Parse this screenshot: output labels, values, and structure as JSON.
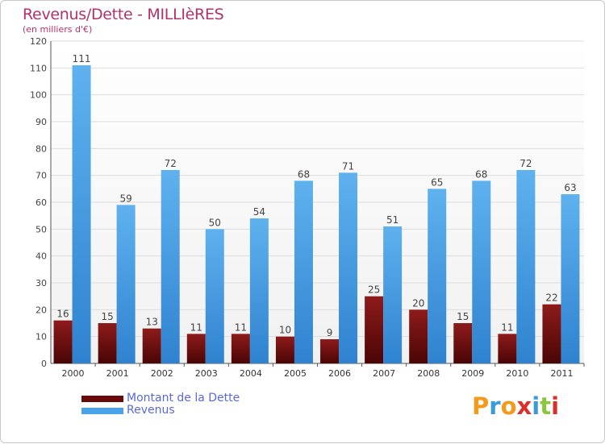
{
  "chart_data": {
    "type": "bar",
    "title": "Revenus/Dette - MILLIèRES",
    "subtitle": "(en milliers d'€)",
    "xlabel": "",
    "ylabel": "",
    "ylim": [
      0,
      120
    ],
    "yticks": [
      0,
      10,
      20,
      30,
      40,
      50,
      60,
      70,
      80,
      90,
      100,
      110,
      120
    ],
    "categories": [
      "2000",
      "2001",
      "2002",
      "2003",
      "2004",
      "2005",
      "2006",
      "2007",
      "2008",
      "2009",
      "2010",
      "2011"
    ],
    "series": [
      {
        "name": "Montant de la Dette",
        "color": "#6b0a0a",
        "values": [
          16,
          15,
          13,
          11,
          11,
          10,
          9,
          25,
          20,
          15,
          11,
          22
        ]
      },
      {
        "name": "Revenus",
        "color": "#4aa3e8",
        "values": [
          111,
          59,
          72,
          50,
          54,
          68,
          71,
          51,
          65,
          68,
          72,
          63
        ]
      }
    ],
    "grid": "horizontal",
    "legend_position": "bottom-left"
  },
  "logo": {
    "letters": [
      "P",
      "r",
      "o",
      "x",
      "i",
      "t",
      "i"
    ],
    "colors": [
      "#f39a1d",
      "#3c9ad7",
      "#f39a1d",
      "#d9302c",
      "#3c9ad7",
      "#8cc63f",
      "#d9302c"
    ]
  }
}
